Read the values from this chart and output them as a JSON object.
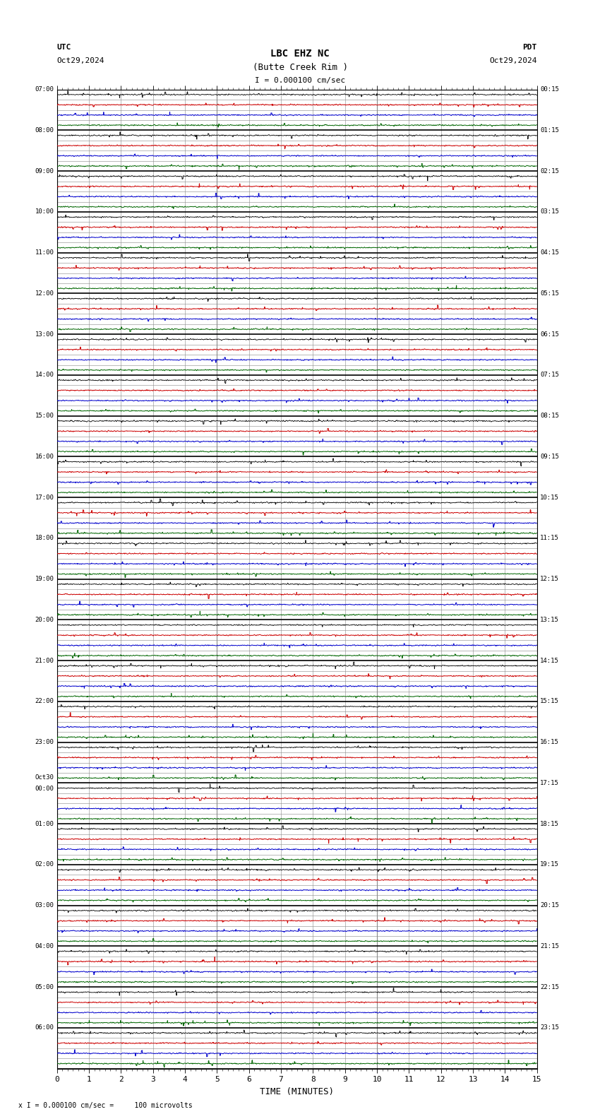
{
  "title_line1": "LBC EHZ NC",
  "title_line2": "(Butte Creek Rim )",
  "scale_label": "I = 0.000100 cm/sec",
  "left_label_top": "UTC",
  "left_label_date": "Oct29,2024",
  "right_label_top": "PDT",
  "right_label_date": "Oct29,2024",
  "xlabel": "TIME (MINUTES)",
  "footer": "x I = 0.000100 cm/sec =     100 microvolts",
  "utc_times_hourly": [
    "07:00",
    "08:00",
    "09:00",
    "10:00",
    "11:00",
    "12:00",
    "13:00",
    "14:00",
    "15:00",
    "16:00",
    "17:00",
    "18:00",
    "19:00",
    "20:00",
    "21:00",
    "22:00",
    "23:00",
    "Oct30\n00:00",
    "01:00",
    "02:00",
    "03:00",
    "04:00",
    "05:00",
    "06:00"
  ],
  "pdt_times_hourly": [
    "00:15",
    "01:15",
    "02:15",
    "03:15",
    "04:15",
    "05:15",
    "06:15",
    "07:15",
    "08:15",
    "09:15",
    "10:15",
    "11:15",
    "12:15",
    "13:15",
    "14:15",
    "15:15",
    "16:15",
    "17:15",
    "18:15",
    "19:15",
    "20:15",
    "21:15",
    "22:15",
    "23:15"
  ],
  "num_hours": 24,
  "rows_per_hour": 4,
  "xmin": 0,
  "xmax": 15,
  "bg_color": "#ffffff",
  "grid_color": "#888888",
  "trace_color_black": "#000000",
  "trace_color_red": "#cc0000",
  "trace_color_blue": "#0000cc",
  "trace_color_green": "#006600",
  "row_colors_pattern": [
    "black",
    "red",
    "blue",
    "green"
  ],
  "hour_line_color": "#000000",
  "sub_line_color": "#888888",
  "thick_hour_line_lw": 1.2,
  "sub_line_lw": 0.4,
  "trace_lw_black": 0.6,
  "trace_lw_colored": 0.7,
  "noise_amp_black": 0.06,
  "noise_amp_colored": 0.055,
  "spike_density": 0.003
}
